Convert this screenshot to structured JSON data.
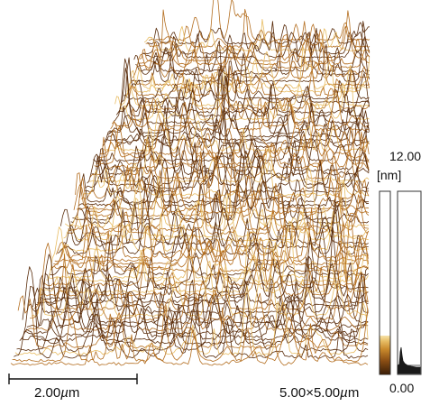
{
  "figure": {
    "scale_bar": {
      "value": "2.00",
      "unit_prefix": "µ",
      "unit_suffix": "m"
    },
    "scan_size": {
      "value": "5.00×5.00",
      "unit_prefix": "µ",
      "unit_suffix": "m"
    },
    "colorbar": {
      "max_label": "12.00",
      "min_label": "0.00",
      "unit_label": "[nm]",
      "colors": [
        "#3a1e08",
        "#8a4e14",
        "#c98a2c",
        "#e6bb62",
        "#f6e2a8"
      ]
    },
    "surface_colors": {
      "dark": "#5a2d0c",
      "mid": "#b46e20",
      "light": "#e8bd64"
    }
  }
}
